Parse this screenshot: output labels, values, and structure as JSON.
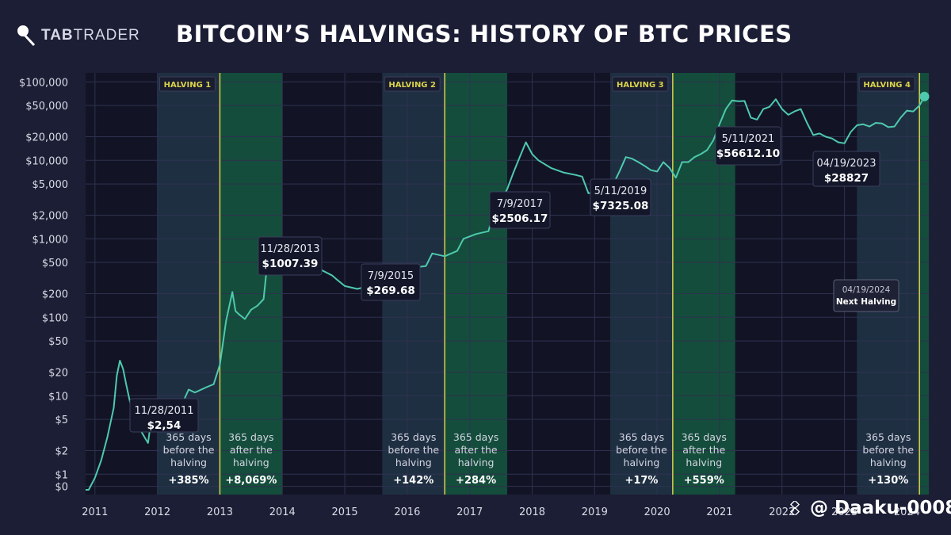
{
  "brand": {
    "logo_text": "TABTRADER",
    "logo_bold": "TAB",
    "logo_light": "TRADER"
  },
  "title": "BITCOIN’S HALVINGS: HISTORY OF BTC PRICES",
  "watermark": {
    "text": "@ Daaku-0008"
  },
  "colors": {
    "background": "#1c1e35",
    "plot": "#121425",
    "before_band": "#23364a",
    "after_band": "#15573f",
    "halving_line": "#d8d24a",
    "price_line": "#4ec9ae"
  },
  "chart_data": {
    "type": "line",
    "title": "BITCOIN’S HALVINGS: HISTORY OF BTC PRICES",
    "xlabel": "",
    "ylabel": "",
    "yscale": "log",
    "xlim": [
      2010.95,
      2024.45
    ],
    "y_ticks": [
      {
        "label": "$0",
        "value": 0.7
      },
      {
        "label": "$1",
        "value": 1
      },
      {
        "label": "$2",
        "value": 2
      },
      {
        "label": "$5",
        "value": 5
      },
      {
        "label": "$10",
        "value": 10
      },
      {
        "label": "$20",
        "value": 20
      },
      {
        "label": "$50",
        "value": 50
      },
      {
        "label": "$100",
        "value": 100
      },
      {
        "label": "$200",
        "value": 200
      },
      {
        "label": "$500",
        "value": 500
      },
      {
        "label": "$1,000",
        "value": 1000
      },
      {
        "label": "$2,000",
        "value": 2000
      },
      {
        "label": "$5,000",
        "value": 5000
      },
      {
        "label": "$10,000",
        "value": 10000
      },
      {
        "label": "$20,000",
        "value": 20000
      },
      {
        "label": "$50,000",
        "value": 50000
      },
      {
        "label": "$100,000",
        "value": 100000
      }
    ],
    "x_ticks": [
      {
        "label": "2011",
        "value": 2011.1
      },
      {
        "label": "2012",
        "value": 2012.1
      },
      {
        "label": "2013",
        "value": 2013.1
      },
      {
        "label": "2014",
        "value": 2014.1
      },
      {
        "label": "2015",
        "value": 2015.1
      },
      {
        "label": "2016",
        "value": 2016.1
      },
      {
        "label": "2017",
        "value": 2017.1
      },
      {
        "label": "2018",
        "value": 2018.1
      },
      {
        "label": "2019",
        "value": 2019.1
      },
      {
        "label": "2020",
        "value": 2020.1
      },
      {
        "label": "2021",
        "value": 2021.1
      },
      {
        "label": "2022",
        "value": 2022.1
      },
      {
        "label": "2023",
        "value": 2023.1
      },
      {
        "label": "2024",
        "value": 2024.1
      }
    ],
    "halvings": [
      {
        "label": "HALVING 1",
        "x": 2013.1
      },
      {
        "label": "HALVING 2",
        "x": 2016.7
      },
      {
        "label": "HALVING 3",
        "x": 2020.35
      },
      {
        "label": "HALVING 4",
        "x": 2024.3
      }
    ],
    "periods": [
      {
        "kind": "before",
        "x0": 2012.1,
        "x1": 2013.1,
        "text": "365 days before the halving",
        "change": "+385%"
      },
      {
        "kind": "after",
        "x0": 2013.1,
        "x1": 2014.1,
        "text": "365 days after the halving",
        "change": "+8,069%"
      },
      {
        "kind": "before",
        "x0": 2015.7,
        "x1": 2016.7,
        "text": "365 days before the halving",
        "change": "+142%"
      },
      {
        "kind": "after",
        "x0": 2016.7,
        "x1": 2017.7,
        "text": "365 days after the halving",
        "change": "+284%"
      },
      {
        "kind": "before",
        "x0": 2019.35,
        "x1": 2020.35,
        "text": "365 days before the halving",
        "change": "+17%"
      },
      {
        "kind": "after",
        "x0": 2020.35,
        "x1": 2021.35,
        "text": "365 days after the halving",
        "change": "+559%"
      },
      {
        "kind": "before",
        "x0": 2023.3,
        "x1": 2024.3,
        "text": "365 days before the halving",
        "change": "+130%"
      },
      {
        "kind": "after",
        "x0": 2024.3,
        "x1": 2024.45,
        "text": "",
        "change": ""
      }
    ],
    "annotations": [
      {
        "date": "11/28/2011",
        "price": "$2,54",
        "x": 2011.91,
        "y": 2.54
      },
      {
        "date": "11/28/2013",
        "price": "$1007.39",
        "x": 2013.91,
        "y": 1007.39
      },
      {
        "date": "7/9/2015",
        "price": "$269.68",
        "x": 2015.52,
        "y": 269.68
      },
      {
        "date": "7/9/2017",
        "price": "$2506.17",
        "x": 2017.52,
        "y": 2506.17
      },
      {
        "date": "5/11/2019",
        "price": "$7325.08",
        "x": 2019.36,
        "y": 7325.08
      },
      {
        "date": "5/11/2021",
        "price": "$56612.10",
        "x": 2021.36,
        "y": 56612.1
      },
      {
        "date": "04/19/2023",
        "price": "$28827",
        "x": 2023.3,
        "y": 28827
      },
      {
        "date": "04/19/2024",
        "price": "Next Halving",
        "x": 2024.3,
        "y": 85,
        "style": "next"
      }
    ],
    "series": [
      {
        "x": [
          2010.95,
          2011.0,
          2011.1,
          2011.2,
          2011.3,
          2011.4,
          2011.45,
          2011.5,
          2011.55,
          2011.6,
          2011.7,
          2011.8,
          2011.9,
          2011.95,
          2012.0,
          2012.1,
          2012.3,
          2012.5,
          2012.6,
          2012.7,
          2012.9,
          2013.0,
          2013.1,
          2013.2,
          2013.3,
          2013.35,
          2013.4,
          2013.5,
          2013.6,
          2013.7,
          2013.8,
          2013.9,
          2014.0,
          2014.1,
          2014.2,
          2014.3,
          2014.5,
          2014.7,
          2014.9,
          2015.0,
          2015.1,
          2015.3,
          2015.5,
          2015.7,
          2015.9,
          2016.0,
          2016.2,
          2016.4,
          2016.5,
          2016.7,
          2016.9,
          2017.0,
          2017.2,
          2017.4,
          2017.5,
          2017.6,
          2017.7,
          2017.8,
          2017.9,
          2018.0,
          2018.1,
          2018.2,
          2018.4,
          2018.6,
          2018.8,
          2018.9,
          2019.0,
          2019.1,
          2019.2,
          2019.3,
          2019.4,
          2019.5,
          2019.6,
          2019.7,
          2019.8,
          2019.9,
          2020.0,
          2020.1,
          2020.2,
          2020.3,
          2020.4,
          2020.5,
          2020.6,
          2020.7,
          2020.8,
          2020.9,
          2021.0,
          2021.1,
          2021.2,
          2021.3,
          2021.4,
          2021.5,
          2021.6,
          2021.7,
          2021.8,
          2021.9,
          2022.0,
          2022.1,
          2022.2,
          2022.3,
          2022.4,
          2022.5,
          2022.6,
          2022.7,
          2022.8,
          2022.9,
          2023.0,
          2023.1,
          2023.2,
          2023.3,
          2023.4,
          2023.5,
          2023.6,
          2023.7,
          2023.8,
          2023.9,
          2024.0,
          2024.1,
          2024.2,
          2024.3,
          2024.38
        ],
        "y": [
          0.3,
          0.5,
          0.9,
          1.5,
          3,
          7,
          18,
          28,
          22,
          14,
          6,
          4,
          2.9,
          2.5,
          5,
          6,
          5,
          8,
          12,
          11,
          13,
          14,
          25,
          90,
          210,
          120,
          110,
          95,
          125,
          140,
          170,
          1007,
          800,
          650,
          550,
          500,
          500,
          410,
          340,
          290,
          250,
          230,
          250,
          260,
          400,
          420,
          430,
          450,
          650,
          600,
          700,
          1000,
          1150,
          1250,
          2506,
          3000,
          4300,
          7000,
          11000,
          17000,
          12000,
          10000,
          8000,
          7000,
          6500,
          6200,
          3800,
          4000,
          3500,
          3600,
          5000,
          7300,
          11000,
          10500,
          9500,
          8500,
          7500,
          7200,
          9500,
          8000,
          6000,
          9500,
          9500,
          11000,
          12000,
          13500,
          18000,
          29000,
          45000,
          58000,
          56612,
          57000,
          35000,
          33000,
          45000,
          48000,
          60000,
          45000,
          38000,
          42000,
          45000,
          30000,
          21000,
          22000,
          20000,
          19000,
          17000,
          16500,
          23000,
          28000,
          28827,
          27000,
          30000,
          29500,
          26500,
          27000,
          35000,
          43000,
          42000,
          50000,
          65000
        ]
      }
    ]
  }
}
